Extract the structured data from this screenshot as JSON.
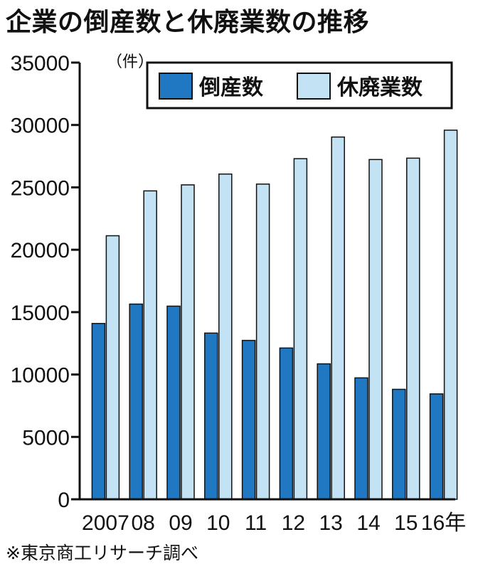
{
  "title": "企業の倒産数と休廃業数の推移",
  "source": "※東京商工リサーチ調べ",
  "colors": {
    "bankruptcy": "#1f78c1",
    "closure": "#c3e3f4",
    "stroke": "#111111"
  },
  "chart_data": {
    "type": "bar",
    "title": "企業の倒産数と休廃業数の推移",
    "unit": "（件）",
    "xlabel": "",
    "ylabel": "",
    "ylim": [
      0,
      35000
    ],
    "yticks": [
      "0",
      "5000",
      "10000",
      "15000",
      "20000",
      "25000",
      "30000",
      "35000"
    ],
    "categories": [
      "2007",
      "08",
      "09",
      "10",
      "11",
      "12",
      "13",
      "14",
      "15",
      "16年"
    ],
    "series": [
      {
        "name": "倒産数",
        "values": [
          14091,
          15646,
          15480,
          13321,
          12734,
          12124,
          10855,
          9731,
          8812,
          8446
        ]
      },
      {
        "name": "休廃業数",
        "values": [
          21122,
          24718,
          25200,
          26067,
          25263,
          27300,
          29034,
          27231,
          27341,
          29583
        ]
      }
    ],
    "legend": "top-right",
    "grid": false
  }
}
